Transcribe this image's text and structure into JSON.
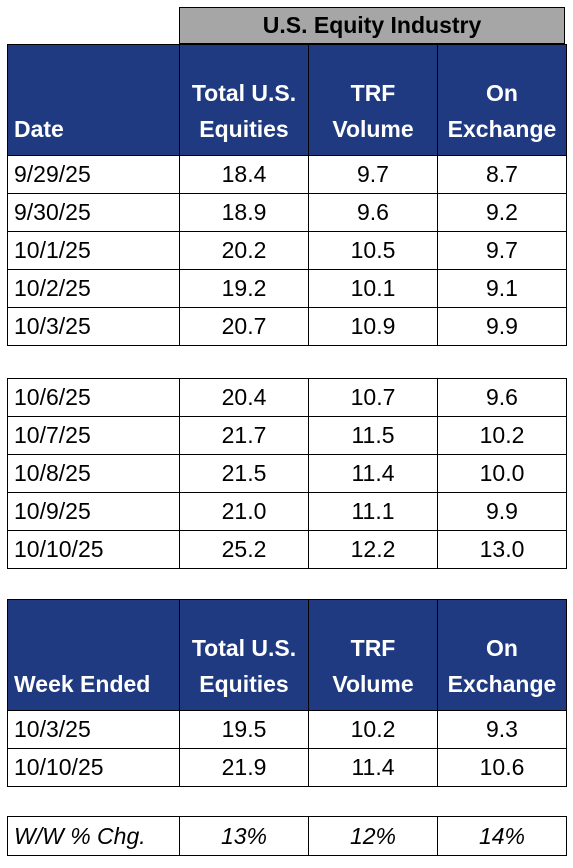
{
  "banner": "U.S. Equity Industry",
  "headers": {
    "date": "Date",
    "week_ended": "Week Ended",
    "total_l1": "Total U.S.",
    "total_l2": "Equities",
    "trf_l1": "TRF",
    "trf_l2": "Volume",
    "onx_l1": "On",
    "onx_l2": "Exchange"
  },
  "week1": [
    {
      "date": "9/29/25",
      "total": "18.4",
      "trf": "9.7",
      "onx": "8.7"
    },
    {
      "date": "9/30/25",
      "total": "18.9",
      "trf": "9.6",
      "onx": "9.2"
    },
    {
      "date": "10/1/25",
      "total": "20.2",
      "trf": "10.5",
      "onx": "9.7"
    },
    {
      "date": "10/2/25",
      "total": "19.2",
      "trf": "10.1",
      "onx": "9.1"
    },
    {
      "date": "10/3/25",
      "total": "20.7",
      "trf": "10.9",
      "onx": "9.9"
    }
  ],
  "week2": [
    {
      "date": "10/6/25",
      "total": "20.4",
      "trf": "10.7",
      "onx": "9.6"
    },
    {
      "date": "10/7/25",
      "total": "21.7",
      "trf": "11.5",
      "onx": "10.2"
    },
    {
      "date": "10/8/25",
      "total": "21.5",
      "trf": "11.4",
      "onx": "10.0"
    },
    {
      "date": "10/9/25",
      "total": "21.0",
      "trf": "11.1",
      "onx": "9.9"
    },
    {
      "date": "10/10/25",
      "total": "25.2",
      "trf": "12.2",
      "onx": "13.0"
    }
  ],
  "weekly": [
    {
      "date": "10/3/25",
      "total": "19.5",
      "trf": "10.2",
      "onx": "9.3"
    },
    {
      "date": "10/10/25",
      "total": "21.9",
      "trf": "11.4",
      "onx": "10.6"
    }
  ],
  "change": {
    "label": "W/W % Chg.",
    "total": "13%",
    "trf": "12%",
    "onx": "14%"
  }
}
